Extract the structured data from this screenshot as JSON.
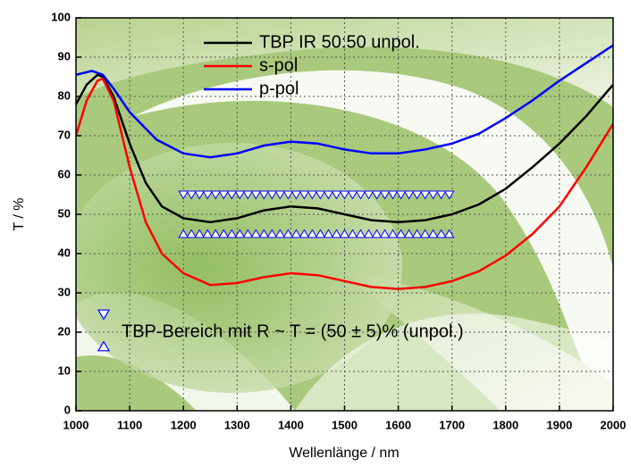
{
  "chart_data": {
    "type": "line",
    "xlabel": "Wellenlänge / nm",
    "ylabel": "T / %",
    "xlim": [
      1000,
      2000
    ],
    "ylim": [
      0,
      100
    ],
    "xticks": [
      1000,
      1100,
      1200,
      1300,
      1400,
      1500,
      1600,
      1700,
      1800,
      1900,
      2000
    ],
    "yticks": [
      0,
      10,
      20,
      30,
      40,
      50,
      60,
      70,
      80,
      90,
      100
    ],
    "grid": true,
    "series": [
      {
        "name": "TBP IR 50:50 unpol.",
        "color": "#000000",
        "marker": "none",
        "x": [
          1000,
          1020,
          1040,
          1050,
          1070,
          1100,
          1130,
          1160,
          1200,
          1250,
          1300,
          1350,
          1400,
          1450,
          1500,
          1550,
          1600,
          1650,
          1700,
          1750,
          1800,
          1850,
          1900,
          1950,
          2000
        ],
        "values": [
          78,
          83,
          85.5,
          85,
          80,
          68,
          58,
          52,
          49,
          48,
          49,
          51,
          52,
          51.5,
          50,
          48.5,
          48,
          48.5,
          50,
          52.5,
          56.5,
          62,
          68,
          75,
          83
        ]
      },
      {
        "name": "s-pol",
        "color": "#ff0000",
        "marker": "none",
        "x": [
          1000,
          1020,
          1040,
          1050,
          1070,
          1100,
          1130,
          1160,
          1200,
          1250,
          1300,
          1350,
          1400,
          1450,
          1500,
          1550,
          1600,
          1650,
          1700,
          1750,
          1800,
          1850,
          1900,
          1950,
          2000
        ],
        "values": [
          70,
          79,
          84,
          84.5,
          79,
          62,
          48,
          40,
          35,
          32,
          32.5,
          34,
          35,
          34.5,
          33,
          31.5,
          31,
          31.5,
          33,
          35.5,
          39.5,
          45,
          52,
          62,
          73
        ]
      },
      {
        "name": "p-pol",
        "color": "#0000ff",
        "marker": "none",
        "x": [
          1000,
          1030,
          1050,
          1070,
          1100,
          1150,
          1200,
          1250,
          1300,
          1350,
          1400,
          1450,
          1500,
          1550,
          1600,
          1650,
          1700,
          1750,
          1800,
          1850,
          1900,
          1950,
          2000
        ],
        "values": [
          85.5,
          86.5,
          85.5,
          82,
          76,
          69,
          65.5,
          64.5,
          65.5,
          67.5,
          68.5,
          68,
          66.5,
          65.5,
          65.5,
          66.5,
          68,
          70.5,
          74.5,
          79,
          84,
          88.5,
          93
        ]
      },
      {
        "name": "TBP-Bereich mit R ~ T = (50 ± 5)% (unpol.)",
        "color": "#0000ff",
        "marker": "triangle-down",
        "x": [
          1200,
          1215,
          1230,
          1245,
          1260,
          1275,
          1290,
          1305,
          1320,
          1335,
          1350,
          1365,
          1380,
          1395,
          1410,
          1425,
          1440,
          1455,
          1470,
          1485,
          1500,
          1515,
          1530,
          1545,
          1560,
          1575,
          1590,
          1605,
          1620,
          1635,
          1650,
          1665,
          1680,
          1695
        ],
        "values": [
          55,
          55,
          55,
          55,
          55,
          55,
          55,
          55,
          55,
          55,
          55,
          55,
          55,
          55,
          55,
          55,
          55,
          55,
          55,
          55,
          55,
          55,
          55,
          55,
          55,
          55,
          55,
          55,
          55,
          55,
          55,
          55,
          55,
          55
        ]
      },
      {
        "color": "#0000ff",
        "marker": "triangle-up",
        "x": [
          1200,
          1215,
          1230,
          1245,
          1260,
          1275,
          1290,
          1305,
          1320,
          1335,
          1350,
          1365,
          1380,
          1395,
          1410,
          1425,
          1440,
          1455,
          1470,
          1485,
          1500,
          1515,
          1530,
          1545,
          1560,
          1575,
          1590,
          1605,
          1620,
          1635,
          1650,
          1665,
          1680,
          1695
        ],
        "values": [
          45,
          45,
          45,
          45,
          45,
          45,
          45,
          45,
          45,
          45,
          45,
          45,
          45,
          45,
          45,
          45,
          45,
          45,
          45,
          45,
          45,
          45,
          45,
          45,
          45,
          45,
          45,
          45,
          45,
          45,
          45,
          45,
          45,
          45
        ]
      }
    ]
  }
}
